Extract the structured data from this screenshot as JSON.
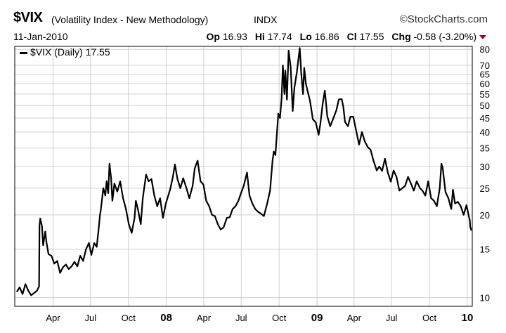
{
  "header": {
    "symbol": "$VIX",
    "description": "(Volatility Index - New Methodology)",
    "exchange": "INDX",
    "brand": "StockCharts.com",
    "date": "11-Jan-2010",
    "open_label": "Op",
    "open": "16.93",
    "high_label": "Hi",
    "high": "17.74",
    "low_label": "Lo",
    "low": "16.86",
    "close_label": "Cl",
    "close": "17.55",
    "change_label": "Chg",
    "change": "-0.58 (-3.20%)",
    "down_color": "#a00030"
  },
  "chart_data": {
    "type": "line",
    "legend": "$VIX (Daily) 17.55",
    "y_scale": "log",
    "ylim": [
      9.3,
      82
    ],
    "y_ticks": [
      10,
      15,
      20,
      25,
      30,
      35,
      40,
      45,
      50,
      55,
      60,
      65,
      70,
      80
    ],
    "x_ticks": [
      "Apr",
      "Jul",
      "Oct",
      "08",
      "Apr",
      "Jul",
      "Oct",
      "09",
      "Apr",
      "Jul",
      "Oct",
      "10"
    ],
    "x_tick_dates": [
      "2007-04-01",
      "2007-07-01",
      "2007-10-01",
      "2008-01-01",
      "2008-04-01",
      "2008-07-01",
      "2008-10-01",
      "2009-01-01",
      "2009-04-01",
      "2009-07-01",
      "2009-10-01",
      "2010-01-01"
    ],
    "bold_ticks": [
      "08",
      "09",
      "10"
    ],
    "grid": true,
    "series": [
      {
        "name": "$VIX (Daily)",
        "points": [
          [
            "2007-01-03",
            10.5
          ],
          [
            "2007-01-10",
            10.9
          ],
          [
            "2007-01-17",
            10.3
          ],
          [
            "2007-01-24",
            11.2
          ],
          [
            "2007-01-31",
            10.6
          ],
          [
            "2007-02-07",
            10.2
          ],
          [
            "2007-02-14",
            10.4
          ],
          [
            "2007-02-21",
            10.6
          ],
          [
            "2007-02-26",
            11.0
          ],
          [
            "2007-02-27",
            18.3
          ],
          [
            "2007-03-01",
            19.4
          ],
          [
            "2007-03-05",
            18.2
          ],
          [
            "2007-03-08",
            15.5
          ],
          [
            "2007-03-13",
            17.4
          ],
          [
            "2007-03-16",
            15.9
          ],
          [
            "2007-03-21",
            14.4
          ],
          [
            "2007-03-28",
            14.2
          ],
          [
            "2007-04-04",
            13.3
          ],
          [
            "2007-04-11",
            13.6
          ],
          [
            "2007-04-18",
            12.3
          ],
          [
            "2007-04-25",
            12.9
          ],
          [
            "2007-05-02",
            13.2
          ],
          [
            "2007-05-09",
            12.7
          ],
          [
            "2007-05-16",
            13.0
          ],
          [
            "2007-05-23",
            13.5
          ],
          [
            "2007-05-30",
            13.0
          ],
          [
            "2007-06-06",
            14.2
          ],
          [
            "2007-06-13",
            13.6
          ],
          [
            "2007-06-20",
            15.0
          ],
          [
            "2007-06-27",
            15.8
          ],
          [
            "2007-07-03",
            14.3
          ],
          [
            "2007-07-10",
            15.8
          ],
          [
            "2007-07-16",
            15.3
          ],
          [
            "2007-07-20",
            17.3
          ],
          [
            "2007-07-24",
            20.0
          ],
          [
            "2007-07-26",
            20.9
          ],
          [
            "2007-08-01",
            25.0
          ],
          [
            "2007-08-06",
            23.5
          ],
          [
            "2007-08-09",
            26.5
          ],
          [
            "2007-08-13",
            24.0
          ],
          [
            "2007-08-16",
            30.7
          ],
          [
            "2007-08-20",
            27.2
          ],
          [
            "2007-08-23",
            22.5
          ],
          [
            "2007-08-28",
            26.0
          ],
          [
            "2007-09-04",
            24.3
          ],
          [
            "2007-09-11",
            26.5
          ],
          [
            "2007-09-18",
            23.0
          ],
          [
            "2007-09-25",
            21.0
          ],
          [
            "2007-10-02",
            18.5
          ],
          [
            "2007-10-09",
            17.2
          ],
          [
            "2007-10-16",
            19.5
          ],
          [
            "2007-10-19",
            22.5
          ],
          [
            "2007-10-24",
            21.0
          ],
          [
            "2007-10-31",
            18.5
          ],
          [
            "2007-11-05",
            23.0
          ],
          [
            "2007-11-09",
            25.5
          ],
          [
            "2007-11-13",
            28.0
          ],
          [
            "2007-11-19",
            26.5
          ],
          [
            "2007-11-26",
            27.0
          ],
          [
            "2007-12-03",
            23.5
          ],
          [
            "2007-12-10",
            21.5
          ],
          [
            "2007-12-17",
            23.0
          ],
          [
            "2007-12-24",
            19.5
          ],
          [
            "2007-12-31",
            22.0
          ],
          [
            "2008-01-07",
            23.8
          ],
          [
            "2008-01-11",
            25.0
          ],
          [
            "2008-01-17",
            27.5
          ],
          [
            "2008-01-22",
            30.5
          ],
          [
            "2008-01-28",
            27.0
          ],
          [
            "2008-02-04",
            25.0
          ],
          [
            "2008-02-11",
            27.2
          ],
          [
            "2008-02-19",
            25.0
          ],
          [
            "2008-02-26",
            23.0
          ],
          [
            "2008-03-05",
            25.5
          ],
          [
            "2008-03-10",
            29.5
          ],
          [
            "2008-03-17",
            31.5
          ],
          [
            "2008-03-24",
            26.5
          ],
          [
            "2008-03-31",
            25.8
          ],
          [
            "2008-04-07",
            22.5
          ],
          [
            "2008-04-14",
            21.5
          ],
          [
            "2008-04-21",
            20.0
          ],
          [
            "2008-04-28",
            19.8
          ],
          [
            "2008-05-05",
            18.5
          ],
          [
            "2008-05-12",
            17.7
          ],
          [
            "2008-05-19",
            18.0
          ],
          [
            "2008-05-27",
            19.5
          ],
          [
            "2008-06-03",
            19.6
          ],
          [
            "2008-06-10",
            21.0
          ],
          [
            "2008-06-17",
            21.5
          ],
          [
            "2008-06-24",
            22.5
          ],
          [
            "2008-06-30",
            23.9
          ],
          [
            "2008-07-07",
            25.5
          ],
          [
            "2008-07-15",
            28.5
          ],
          [
            "2008-07-21",
            23.5
          ],
          [
            "2008-07-28",
            22.0
          ],
          [
            "2008-08-04",
            21.0
          ],
          [
            "2008-08-11",
            20.5
          ],
          [
            "2008-08-18",
            20.2
          ],
          [
            "2008-08-25",
            19.8
          ],
          [
            "2008-09-02",
            22.0
          ],
          [
            "2008-09-09",
            24.5
          ],
          [
            "2008-09-15",
            31.5
          ],
          [
            "2008-09-18",
            34.0
          ],
          [
            "2008-09-22",
            33.0
          ],
          [
            "2008-09-29",
            46.7
          ],
          [
            "2008-10-03",
            45.0
          ],
          [
            "2008-10-07",
            53.0
          ],
          [
            "2008-10-10",
            69.9
          ],
          [
            "2008-10-14",
            55.0
          ],
          [
            "2008-10-16",
            67.0
          ],
          [
            "2008-10-20",
            52.5
          ],
          [
            "2008-10-24",
            79.1
          ],
          [
            "2008-10-29",
            69.0
          ],
          [
            "2008-11-03",
            47.7
          ],
          [
            "2008-11-07",
            58.0
          ],
          [
            "2008-11-13",
            66.0
          ],
          [
            "2008-11-20",
            80.9
          ],
          [
            "2008-11-24",
            64.7
          ],
          [
            "2008-11-28",
            55.0
          ],
          [
            "2008-12-01",
            68.5
          ],
          [
            "2008-12-05",
            59.9
          ],
          [
            "2008-12-10",
            55.7
          ],
          [
            "2008-12-15",
            52.0
          ],
          [
            "2008-12-22",
            44.5
          ],
          [
            "2008-12-29",
            43.4
          ],
          [
            "2009-01-05",
            39.1
          ],
          [
            "2009-01-09",
            42.8
          ],
          [
            "2009-01-15",
            51.0
          ],
          [
            "2009-01-20",
            56.6
          ],
          [
            "2009-01-26",
            45.7
          ],
          [
            "2009-02-02",
            42.0
          ],
          [
            "2009-02-09",
            44.6
          ],
          [
            "2009-02-17",
            48.0
          ],
          [
            "2009-02-23",
            52.6
          ],
          [
            "2009-03-02",
            52.7
          ],
          [
            "2009-03-06",
            49.3
          ],
          [
            "2009-03-10",
            43.6
          ],
          [
            "2009-03-17",
            42.0
          ],
          [
            "2009-03-23",
            45.5
          ],
          [
            "2009-03-30",
            45.5
          ],
          [
            "2009-04-06",
            40.5
          ],
          [
            "2009-04-13",
            36.0
          ],
          [
            "2009-04-20",
            40.0
          ],
          [
            "2009-04-27",
            37.0
          ],
          [
            "2009-05-04",
            35.3
          ],
          [
            "2009-05-11",
            34.5
          ],
          [
            "2009-05-18",
            31.5
          ],
          [
            "2009-05-26",
            29.0
          ],
          [
            "2009-06-01",
            30.0
          ],
          [
            "2009-06-08",
            28.9
          ],
          [
            "2009-06-15",
            32.0
          ],
          [
            "2009-06-22",
            28.5
          ],
          [
            "2009-06-29",
            26.4
          ],
          [
            "2009-07-06",
            29.0
          ],
          [
            "2009-07-13",
            27.5
          ],
          [
            "2009-07-20",
            24.5
          ],
          [
            "2009-07-27",
            25.0
          ],
          [
            "2009-08-03",
            25.5
          ],
          [
            "2009-08-10",
            27.5
          ],
          [
            "2009-08-17",
            26.0
          ],
          [
            "2009-08-24",
            24.5
          ],
          [
            "2009-08-31",
            26.5
          ],
          [
            "2009-09-08",
            25.0
          ],
          [
            "2009-09-14",
            24.5
          ],
          [
            "2009-09-21",
            23.5
          ],
          [
            "2009-09-28",
            26.5
          ],
          [
            "2009-10-05",
            23.0
          ],
          [
            "2009-10-12",
            22.5
          ],
          [
            "2009-10-19",
            21.5
          ],
          [
            "2009-10-26",
            25.0
          ],
          [
            "2009-10-30",
            30.7
          ],
          [
            "2009-11-02",
            29.8
          ],
          [
            "2009-11-09",
            24.2
          ],
          [
            "2009-11-16",
            23.0
          ],
          [
            "2009-11-23",
            21.0
          ],
          [
            "2009-11-27",
            24.7
          ],
          [
            "2009-12-02",
            22.0
          ],
          [
            "2009-12-09",
            22.3
          ],
          [
            "2009-12-16",
            21.5
          ],
          [
            "2009-12-23",
            20.0
          ],
          [
            "2009-12-30",
            21.7
          ],
          [
            "2010-01-04",
            20.0
          ],
          [
            "2010-01-07",
            19.1
          ],
          [
            "2010-01-08",
            18.1
          ],
          [
            "2010-01-11",
            17.55
          ]
        ]
      }
    ]
  }
}
